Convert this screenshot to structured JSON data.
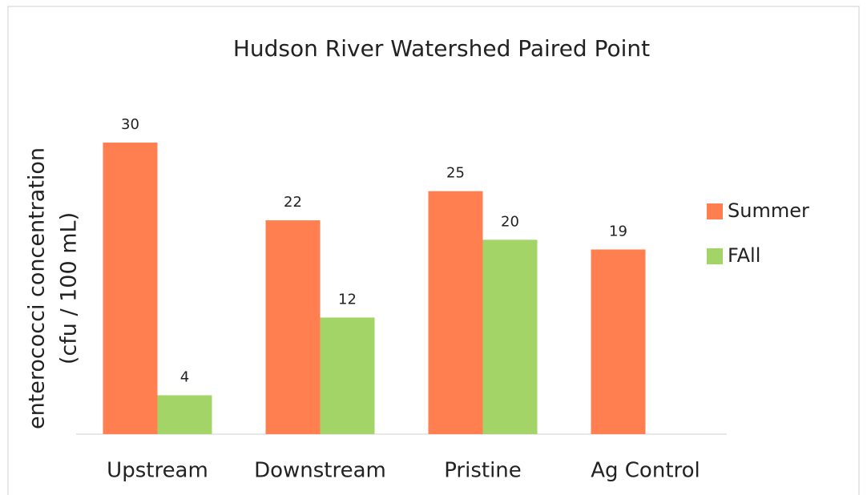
{
  "chart_data": {
    "type": "bar",
    "title": "Hudson River Watershed Paired Point",
    "y_label": [
      "enterococci concentration",
      "(cfu / 100 mL)"
    ],
    "categories": [
      "Upstream",
      "Downstream",
      "Pristine",
      "Ag Control"
    ],
    "series": [
      {
        "name": "Summer",
        "color": "#ff7f50",
        "values": [
          30,
          22,
          25,
          19
        ]
      },
      {
        "name": "FAll",
        "color": "#a3d468",
        "values": [
          4,
          12,
          20,
          null
        ]
      }
    ],
    "ylim": [
      0,
      30
    ],
    "legend": "right"
  }
}
